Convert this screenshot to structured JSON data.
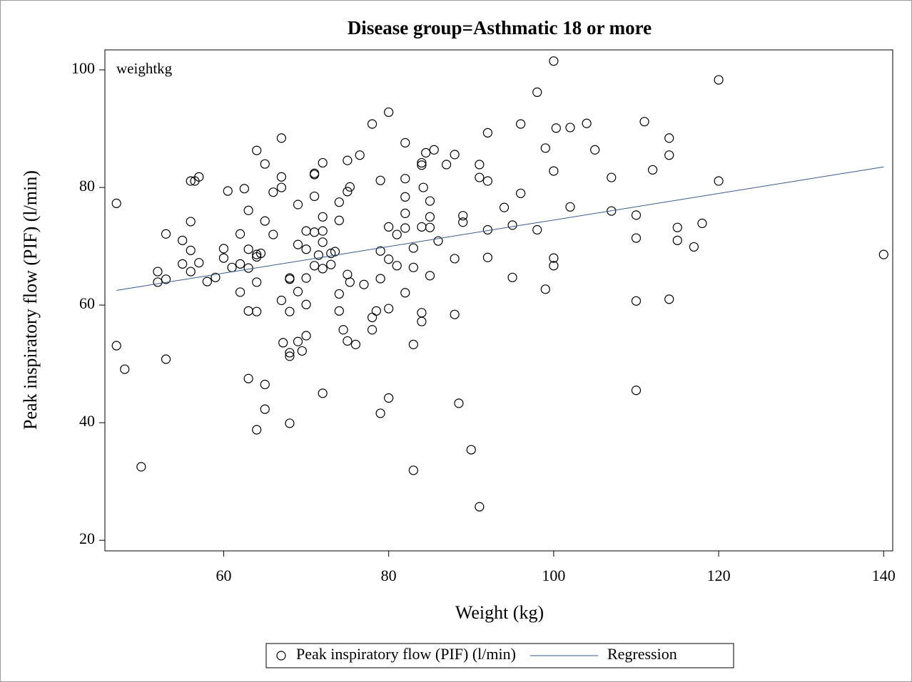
{
  "chart_data": {
    "type": "scatter",
    "title": "Disease group=Asthmatic 18 or more",
    "annotation": "weightkg",
    "x_label": "Weight (kg)",
    "y_label": "Peak inspiratory flow (PIF) (l/min)",
    "xlim": [
      45.6,
      141.1
    ],
    "ylim": [
      18.2,
      103.4
    ],
    "xticks": [
      60,
      80,
      100,
      120,
      140
    ],
    "yticks": [
      20,
      40,
      60,
      80,
      100
    ],
    "grid": false,
    "legend": "bottom",
    "series": [
      {
        "name": "Peak inspiratory flow (PIF) (l/min)",
        "mode": "markers",
        "color": "#000000",
        "x": [
          47,
          47,
          48,
          50,
          52,
          52,
          53,
          53,
          53,
          55,
          55,
          56,
          56,
          56,
          56,
          56.5,
          57,
          57,
          58,
          59,
          60,
          60,
          60.5,
          61,
          62,
          62,
          62,
          62.5,
          63,
          63,
          63,
          63,
          63,
          64,
          64,
          64,
          64,
          64,
          64,
          64.5,
          65,
          65,
          65,
          65,
          66,
          66,
          67,
          67,
          67,
          67,
          67.2,
          68,
          68,
          68,
          68,
          68,
          68,
          69,
          69,
          69,
          69,
          69.5,
          70,
          70,
          70,
          70,
          70,
          71,
          71,
          71,
          71,
          71,
          71.5,
          72,
          72,
          72,
          72,
          72,
          72,
          73,
          73,
          73.5,
          74,
          74,
          74,
          74,
          74.5,
          75,
          75,
          75,
          75,
          75.3,
          75.3,
          76,
          76.5,
          77,
          78,
          78,
          78,
          78.5,
          79,
          79,
          79,
          79,
          80,
          80,
          80,
          80,
          80,
          81,
          81,
          82,
          82,
          82,
          82,
          82,
          82,
          83,
          83,
          83,
          83,
          84,
          84,
          84,
          84,
          84,
          84.2,
          84.5,
          85,
          85,
          85,
          85,
          85.5,
          86,
          87,
          88,
          88,
          88,
          88.5,
          89,
          89,
          90,
          91,
          91,
          91,
          92,
          92,
          92,
          92,
          94,
          95,
          95,
          96,
          96,
          98,
          98,
          99,
          99,
          100,
          100,
          100,
          100,
          100.3,
          102,
          102,
          104,
          105,
          107,
          107,
          110,
          110,
          110,
          110,
          111,
          112,
          114,
          114,
          114,
          115,
          115,
          117,
          118,
          120,
          120,
          140
        ],
        "values": [
          77.3,
          53.1,
          49.1,
          32.5,
          65.7,
          63.9,
          72.1,
          64.4,
          50.8,
          71,
          67,
          81.1,
          74.2,
          69.3,
          65.7,
          81.1,
          81.8,
          67.2,
          64,
          64.7,
          69.6,
          68,
          79.4,
          66.4,
          72.1,
          67,
          62.2,
          79.8,
          76.1,
          69.5,
          66.3,
          59,
          47.5,
          86.3,
          68.6,
          68.2,
          63.9,
          58.9,
          38.8,
          68.8,
          84,
          74.3,
          46.5,
          42.3,
          79.2,
          72,
          88.4,
          81.8,
          80,
          60.8,
          53.6,
          64.6,
          64.4,
          58.9,
          51.9,
          51.3,
          39.9,
          77.1,
          70.3,
          62.3,
          53.8,
          52.2,
          72.6,
          69.5,
          64.6,
          60.1,
          54.8,
          82.4,
          82.2,
          78.5,
          72.4,
          66.7,
          68.5,
          84.2,
          75,
          72.6,
          70.7,
          66.2,
          45,
          68.8,
          66.9,
          69.1,
          77.5,
          74.4,
          61.9,
          59,
          55.8,
          84.6,
          79.3,
          65.2,
          53.9,
          80.1,
          63.9,
          53.3,
          85.5,
          63.5,
          90.8,
          57.9,
          55.8,
          59,
          81.2,
          69.2,
          64.5,
          41.6,
          92.8,
          73.3,
          67.8,
          59.4,
          44.2,
          72,
          66.7,
          87.6,
          81.5,
          78.4,
          75.6,
          73.1,
          62.1,
          69.7,
          66.4,
          53.3,
          31.9,
          84.2,
          83.8,
          73.3,
          58.7,
          57.2,
          80,
          85.9,
          77.7,
          75,
          73.2,
          65,
          86.4,
          70.9,
          83.9,
          85.6,
          67.9,
          58.4,
          43.3,
          75.2,
          74.1,
          35.4,
          83.9,
          81.7,
          25.7,
          89.3,
          81.1,
          72.8,
          68.1,
          76.6,
          73.6,
          64.7,
          90.8,
          79,
          96.2,
          72.8,
          86.7,
          62.7,
          101.5,
          82.8,
          68,
          66.7,
          90.1,
          90.2,
          76.7,
          90.9,
          86.4,
          81.7,
          76,
          75.3,
          71.4,
          60.7,
          45.5,
          91.2,
          83,
          88.4,
          85.5,
          61,
          73.2,
          71,
          69.9,
          73.9,
          98.3,
          81.1,
          68.6
        ]
      },
      {
        "name": "Regression",
        "mode": "line",
        "color": "#3a5a8c",
        "x": [
          47,
          140
        ],
        "values": [
          62.5,
          83.5
        ]
      }
    ]
  }
}
